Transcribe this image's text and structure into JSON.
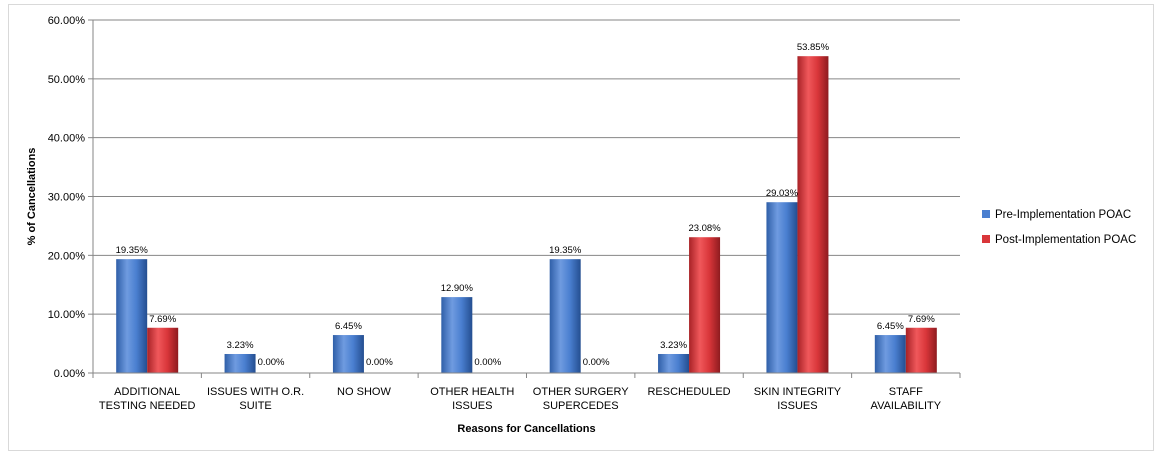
{
  "chart_data": {
    "type": "bar",
    "xlabel": "Reasons for Cancellations",
    "ylabel": "% of Cancellations",
    "ylim": [
      0,
      60
    ],
    "yticks": [
      "0.00%",
      "10.00%",
      "20.00%",
      "30.00%",
      "40.00%",
      "50.00%",
      "60.00%"
    ],
    "ytick_values": [
      0,
      10,
      20,
      30,
      40,
      50,
      60
    ],
    "grid": true,
    "legend_position": "right",
    "categories": [
      [
        "ADDITIONAL",
        "TESTING NEEDED"
      ],
      [
        "ISSUES WITH O.R.",
        "SUITE"
      ],
      [
        "NO SHOW"
      ],
      [
        "OTHER HEALTH",
        "ISSUES"
      ],
      [
        "OTHER SURGERY",
        "SUPERCEDES"
      ],
      [
        "RESCHEDULED"
      ],
      [
        "SKIN INTEGRITY",
        "ISSUES"
      ],
      [
        "STAFF",
        "AVAILABILITY"
      ]
    ],
    "series": [
      {
        "name": "Pre-Implementation POAC",
        "color": "#4a7fd0",
        "values": [
          19.35,
          3.23,
          6.45,
          12.9,
          19.35,
          3.23,
          29.03,
          6.45
        ],
        "labels": [
          "19.35%",
          "3.23%",
          "6.45%",
          "12.90%",
          "19.35%",
          "3.23%",
          "29.03%",
          "6.45%"
        ]
      },
      {
        "name": "Post-Implementation POAC",
        "color": "#d9363a",
        "values": [
          7.69,
          0,
          0,
          0,
          0,
          23.08,
          53.85,
          7.69
        ],
        "labels": [
          "7.69%",
          "0.00%",
          "0.00%",
          "0.00%",
          "0.00%",
          "23.08%",
          "53.85%",
          "7.69%"
        ]
      }
    ]
  }
}
